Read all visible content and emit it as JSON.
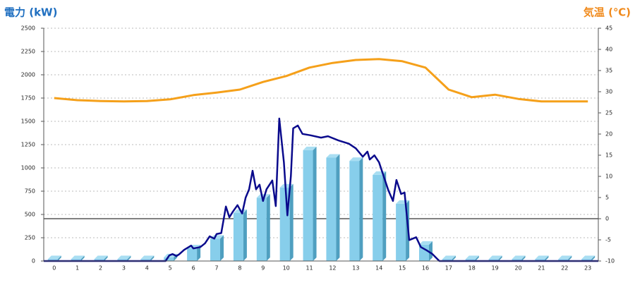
{
  "chart_data": {
    "type": "bar",
    "y_label": "電力 (kW)",
    "y2_label": "気温 (℃)",
    "categories": [
      "0",
      "1",
      "2",
      "3",
      "4",
      "5",
      "6",
      "7",
      "8",
      "9",
      "10",
      "11",
      "12",
      "13",
      "14",
      "15",
      "16",
      "17",
      "18",
      "19",
      "20",
      "21",
      "22",
      "23"
    ],
    "xlim": [
      -0.45,
      23.45
    ],
    "ylim": [
      0,
      2500
    ],
    "yticks": [
      0,
      250,
      500,
      750,
      1000,
      1250,
      1500,
      1750,
      2000,
      2250,
      2500
    ],
    "y2lim": [
      -10,
      45
    ],
    "y2ticks": [
      -10,
      -5,
      0,
      5,
      10,
      15,
      20,
      25,
      30,
      35,
      40,
      45
    ],
    "grid": true,
    "series": [
      {
        "type": "bar",
        "color": "#87ceeb",
        "values": [
          20,
          20,
          20,
          20,
          20,
          40,
          136,
          240,
          515,
          680,
          790,
          1190,
          1110,
          1075,
          925,
          615,
          175,
          20,
          20,
          20,
          20,
          20,
          20,
          20
        ]
      },
      {
        "type": "line",
        "axis": "y2",
        "color": "#f5a01a",
        "values": [
          28.5,
          28,
          27.8,
          27.7,
          27.8,
          28.2,
          29.2,
          29.8,
          30.5,
          32.3,
          33.7,
          35.7,
          36.8,
          37.5,
          37.7,
          37.2,
          35.7,
          30.5,
          28.7,
          29.3,
          28.3,
          27.7,
          27.7,
          27.7
        ]
      },
      {
        "type": "line",
        "color": "#0a0a8c",
        "x": [
          -0.45,
          4.8,
          4.96,
          5.1,
          5.27,
          5.4,
          5.6,
          5.9,
          6.0,
          6.3,
          6.5,
          6.7,
          6.9,
          7.0,
          7.2,
          7.4,
          7.55,
          7.7,
          7.9,
          8.1,
          8.25,
          8.4,
          8.55,
          8.7,
          8.85,
          9.0,
          9.15,
          9.4,
          9.55,
          9.7,
          9.9,
          10.05,
          10.2,
          10.3,
          10.5,
          10.7,
          11.05,
          11.5,
          11.8,
          12.25,
          12.7,
          13.0,
          13.3,
          13.5,
          13.6,
          13.8,
          14.0,
          14.2,
          14.4,
          14.6,
          14.75,
          14.95,
          15.1,
          15.3,
          15.45,
          15.6,
          15.8,
          16.05,
          16.3,
          16.6,
          23.45
        ],
        "values": [
          0,
          0,
          60,
          75,
          53,
          75,
          120,
          165,
          135,
          150,
          190,
          265,
          240,
          290,
          300,
          585,
          470,
          530,
          600,
          510,
          680,
          770,
          970,
          770,
          820,
          645,
          770,
          865,
          590,
          1530,
          1060,
          490,
          910,
          1425,
          1455,
          1365,
          1350,
          1325,
          1340,
          1295,
          1260,
          1210,
          1120,
          1175,
          1090,
          1135,
          1060,
          910,
          760,
          645,
          870,
          720,
          735,
          225,
          240,
          255,
          150,
          115,
          75,
          0,
          0
        ]
      }
    ]
  }
}
